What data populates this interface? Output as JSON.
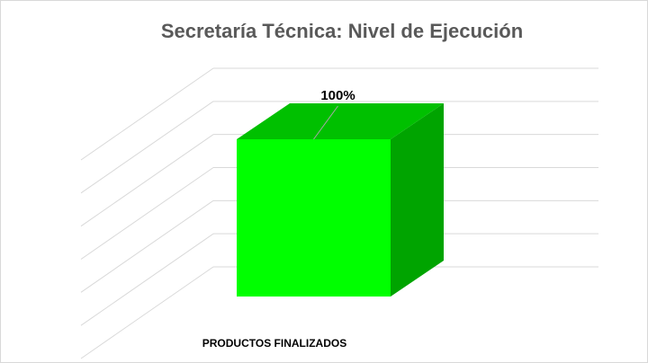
{
  "chart_data": {
    "type": "bar3d",
    "title": "Secretaría Técnica: Nivel de Ejecución",
    "categories": [
      "PRODUCTOS FINALIZADOS"
    ],
    "values": [
      100
    ],
    "value_labels": [
      "100%"
    ],
    "ylim": [
      0,
      120
    ],
    "yticks": [
      0,
      20,
      40,
      60,
      80,
      100,
      120
    ],
    "grid": true,
    "colors": {
      "front": "#00ff00",
      "top": "#00c000",
      "side": "#00a400"
    }
  }
}
